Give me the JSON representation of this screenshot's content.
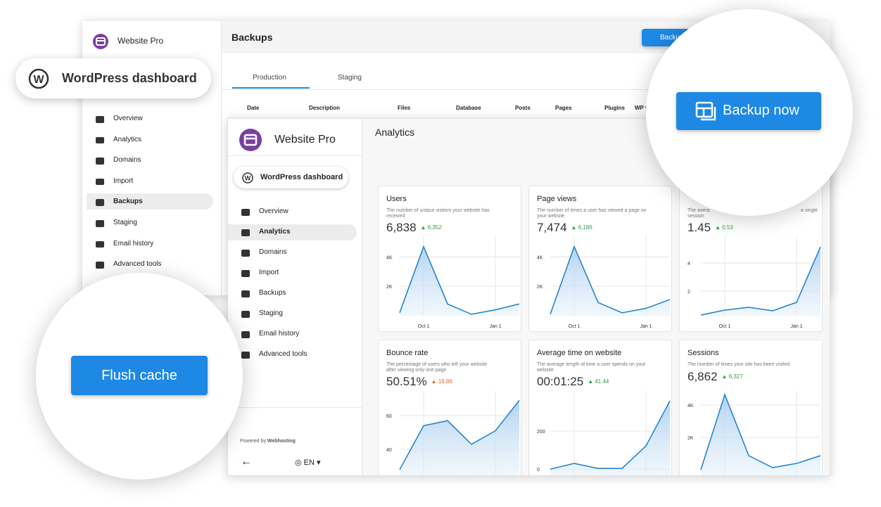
{
  "back": {
    "brand": "Website Pro",
    "title": "Backups",
    "button": "Backup now",
    "tabs": [
      "Production",
      "Staging"
    ],
    "columns": [
      "Date",
      "Description",
      "Files",
      "Database",
      "Posts",
      "Pages",
      "Plugins",
      "WP version"
    ],
    "menu": [
      "Overview",
      "Analytics",
      "Domains",
      "Import",
      "Backups",
      "Staging",
      "Email history",
      "Advanced tools"
    ]
  },
  "wp_pill": "WordPress dashboard",
  "front": {
    "brand": "Website Pro",
    "wp": "WordPress dashboard",
    "title": "Analytics",
    "menu": [
      "Overview",
      "Analytics",
      "Domains",
      "Import",
      "Backups",
      "Staging",
      "Email history",
      "Advanced tools"
    ],
    "powered_prefix": "Powered by",
    "powered_brand": "Webhosting",
    "lang": "EN"
  },
  "cards": [
    {
      "title": "Users",
      "desc": [
        "The number of unique visitors your website has",
        "received"
      ],
      "value": "6,838",
      "delta": "6,352",
      "delta_color": "#2e9e44",
      "chart": {
        "type": "line",
        "categories": [
          null,
          "Oct 1",
          null,
          null,
          "Jan 1",
          null
        ],
        "values": [
          200,
          4700,
          800,
          100,
          400,
          800
        ],
        "ylim": [
          0,
          5400
        ],
        "yticks": [
          {
            "value": 2000,
            "label": "2K"
          },
          {
            "value": 4000,
            "label": "4K"
          }
        ]
      }
    },
    {
      "title": "Page views",
      "desc": [
        "The number of times a user has viewed a page on",
        "your website"
      ],
      "value": "7,474",
      "delta": "6,186",
      "delta_color": "#2e9e44",
      "chart": {
        "type": "line",
        "categories": [
          null,
          "Oct 1",
          null,
          null,
          "Jan 1",
          null
        ],
        "values": [
          100,
          4700,
          900,
          200,
          500,
          1100
        ],
        "ylim": [
          0,
          5400
        ],
        "yticks": [
          {
            "value": 2000,
            "label": "2K"
          },
          {
            "value": 4000,
            "label": "4K"
          }
        ]
      }
    },
    {
      "desc": [
        "The avera",
        "session"
      ],
      "desc_right": "a single",
      "value": "1.45",
      "delta": "0.53",
      "delta_color": "#2e9e44",
      "chart": {
        "type": "line",
        "categories": [
          null,
          "Oct 1",
          null,
          null,
          "Jan 1",
          null
        ],
        "values": [
          0.3,
          0.65,
          0.85,
          0.6,
          1.2,
          5.15
        ],
        "ylim": [
          0.25,
          5.9
        ],
        "yticks": [
          2,
          4
        ]
      }
    },
    {
      "title": "Bounce rate",
      "desc": [
        "The percentage of users who left your website",
        "after viewing only one page"
      ],
      "value": "50.51%",
      "delta": "19.86",
      "delta_color": "#e8652a",
      "chart": {
        "type": "line",
        "categories": [
          null,
          null,
          null,
          null,
          null,
          null
        ],
        "values": [
          28,
          54,
          57,
          43,
          51,
          69
        ],
        "ylim": [
          23.75,
          74.58
        ],
        "yticks": [
          40,
          60
        ]
      }
    },
    {
      "title": "Average time on website",
      "desc": [
        "The average length of time a user spends on your",
        "website"
      ],
      "value": "00:01:25",
      "delta": "41.44",
      "delta_color": "#2e9e44",
      "chart": {
        "type": "line",
        "categories": [
          null,
          null,
          null,
          null,
          null,
          null
        ],
        "values": [
          0,
          30,
          4,
          4,
          122,
          359
        ],
        "ylim": [
          -40,
          411
        ],
        "yticks": [
          0,
          200
        ]
      }
    },
    {
      "title": "Sessions",
      "desc": [
        "The number of times your site has been visited"
      ],
      "value": "6,862",
      "delta": "6,327",
      "delta_color": "#2e9e44",
      "chart": {
        "type": "line",
        "categories": [
          null,
          null,
          null,
          null,
          null,
          null
        ],
        "values": [
          0,
          4650,
          870,
          130,
          390,
          870
        ],
        "ylim": [
          -435,
          4870
        ],
        "yticks": [
          {
            "value": 2000,
            "label": "2K"
          },
          {
            "value": 4000,
            "label": "4K"
          }
        ]
      }
    }
  ],
  "zoom": {
    "backup": "Backup now",
    "flush": "Flush cache"
  }
}
